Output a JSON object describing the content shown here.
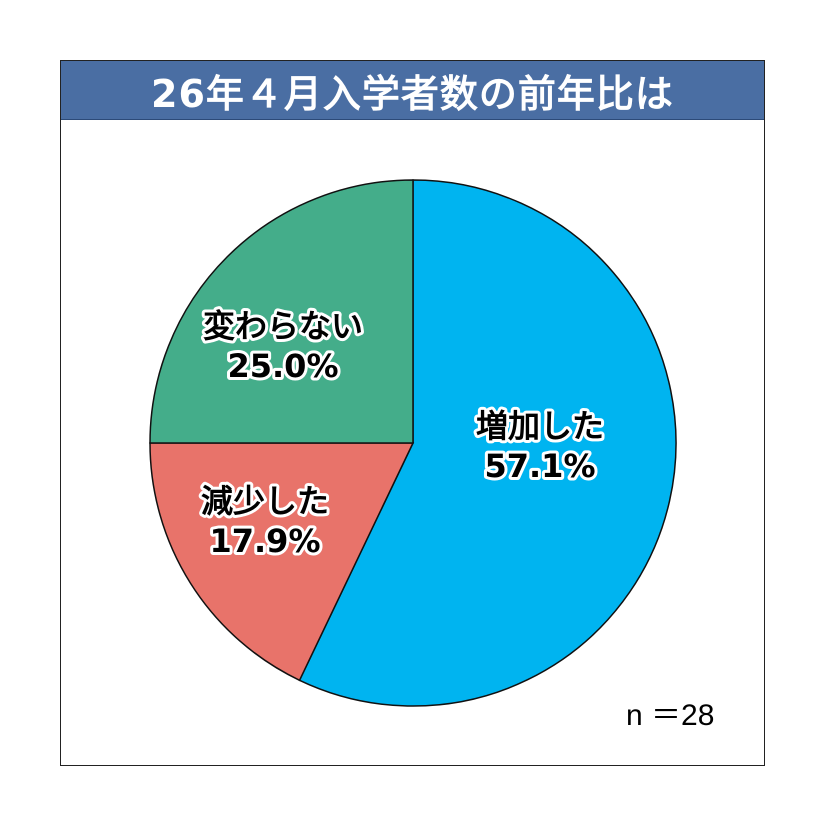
{
  "chart_data": {
    "type": "pie",
    "title": "26年４月入学者数の前年比は",
    "start_angle": "top",
    "direction": "clockwise",
    "slices": [
      {
        "label": "増加した",
        "value": 57.1,
        "value_label": "57.1%",
        "color": "#00b4f0"
      },
      {
        "label": "減少した",
        "value": 17.9,
        "value_label": "17.9%",
        "color": "#e8736a"
      },
      {
        "label": "変わらない",
        "value": 25.0,
        "value_label": "25.0%",
        "color": "#44ad8a"
      }
    ],
    "annotation": "n ＝28"
  }
}
